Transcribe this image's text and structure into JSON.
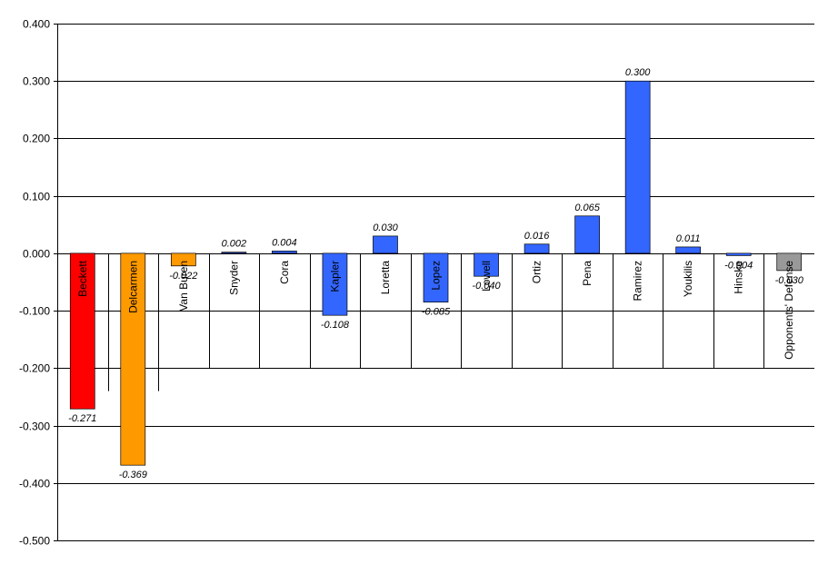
{
  "chart_data": {
    "type": "bar",
    "title": "",
    "xlabel": "",
    "ylabel": "",
    "ylim": [
      -0.5,
      0.4
    ],
    "yticks": [
      "0.400",
      "0.300",
      "0.200",
      "0.100",
      "0.000",
      "-0.100",
      "-0.200",
      "-0.300",
      "-0.400",
      "-0.500"
    ],
    "grid": true,
    "categories": [
      "Beckett",
      "Delcarmen",
      "Van Buren",
      "Snyder",
      "Cora",
      "Kapler",
      "Loretta",
      "Lopez",
      "Lowell",
      "Ortiz",
      "Pena",
      "Ramirez",
      "Youkilis",
      "Hinske",
      "Opponents' Defense"
    ],
    "values": [
      -0.271,
      -0.369,
      -0.022,
      0.002,
      0.004,
      -0.108,
      0.03,
      -0.085,
      -0.04,
      0.016,
      0.065,
      0.3,
      0.011,
      -0.004,
      -0.03
    ],
    "value_labels": [
      "-0.271",
      "-0.369",
      "-0.022",
      "0.002",
      "0.004",
      "-0.108",
      "0.030",
      "-0.085",
      "-0.040",
      "0.016",
      "0.065",
      "0.300",
      "0.011",
      "-0.004",
      "-0.030"
    ],
    "colors": [
      "#ff0000",
      "#ff9900",
      "#ff9900",
      "#3366ff",
      "#3366ff",
      "#3366ff",
      "#3366ff",
      "#3366ff",
      "#3366ff",
      "#3366ff",
      "#3366ff",
      "#3366ff",
      "#3366ff",
      "#3366ff",
      "#999999"
    ]
  }
}
